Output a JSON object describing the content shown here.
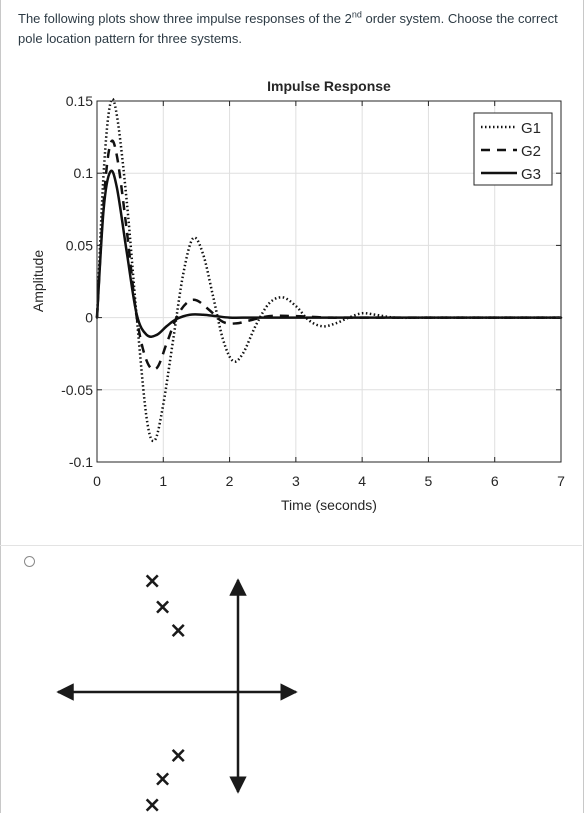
{
  "question": {
    "text_before": "The following plots show three impulse responses of the 2",
    "superscript": "nd",
    "text_after": " order system. Choose the correct pole location pattern for three systems."
  },
  "chart_data": {
    "type": "line",
    "title": "Impulse Response",
    "xlabel": "Time (seconds)",
    "ylabel": "Amplitude",
    "xlim": [
      0,
      7
    ],
    "ylim": [
      -0.1,
      0.15
    ],
    "xticks": [
      0,
      1,
      2,
      3,
      4,
      5,
      6,
      7
    ],
    "xtick_labels": [
      "0",
      "1",
      "2",
      "3",
      "4",
      "5",
      "6",
      "7"
    ],
    "yticks": [
      0.15,
      0.1,
      0.05,
      0,
      -0.05,
      -0.1
    ],
    "ytick_labels": [
      "0.15",
      "0.1",
      "0.05",
      "0",
      "-0.05",
      "-0.1"
    ],
    "grid": true,
    "legend_position": "top-right",
    "series": [
      {
        "name": "G1",
        "style": "dotted",
        "x": [
          0,
          0.1,
          0.2,
          0.3,
          0.45,
          0.6,
          0.75,
          0.87,
          1.0,
          1.15,
          1.3,
          1.45,
          1.6,
          1.75,
          1.9,
          2.05,
          2.2,
          2.4,
          2.6,
          2.8,
          3.0,
          3.2,
          3.4,
          3.6,
          3.8,
          4.0,
          4.2,
          4.5,
          5.0,
          5.5,
          6.0,
          7.0
        ],
        "y": [
          0,
          0.1,
          0.148,
          0.14,
          0.08,
          0.0,
          -0.07,
          -0.085,
          -0.06,
          -0.015,
          0.03,
          0.055,
          0.044,
          0.015,
          -0.015,
          -0.03,
          -0.025,
          -0.005,
          0.01,
          0.014,
          0.008,
          -0.002,
          -0.006,
          -0.004,
          0.0,
          0.003,
          0.002,
          0.0,
          0.0,
          0.0,
          0.0,
          0.0
        ]
      },
      {
        "name": "G2",
        "style": "dashed",
        "x": [
          0,
          0.1,
          0.2,
          0.3,
          0.45,
          0.6,
          0.75,
          0.9,
          1.05,
          1.2,
          1.35,
          1.5,
          1.7,
          1.9,
          2.1,
          2.3,
          2.6,
          3.0,
          3.5,
          4.0,
          7.0
        ],
        "y": [
          0,
          0.08,
          0.12,
          0.112,
          0.06,
          0.0,
          -0.03,
          -0.035,
          -0.018,
          0.0,
          0.01,
          0.012,
          0.005,
          -0.003,
          -0.004,
          -0.002,
          0.001,
          0.001,
          0.0,
          0.0,
          0.0
        ]
      },
      {
        "name": "G3",
        "style": "solid",
        "x": [
          0,
          0.1,
          0.2,
          0.3,
          0.45,
          0.6,
          0.75,
          0.9,
          1.05,
          1.2,
          1.4,
          1.6,
          1.8,
          2.0,
          2.3,
          2.6,
          3.0,
          7.0
        ],
        "y": [
          0,
          0.075,
          0.101,
          0.09,
          0.045,
          0.002,
          -0.012,
          -0.012,
          -0.006,
          -0.001,
          0.002,
          0.002,
          0.001,
          0.0,
          0.0,
          0.0,
          0.0,
          0.0
        ]
      }
    ]
  },
  "pole_plot": {
    "poles": [
      {
        "re": -3.3,
        "im": 4.3
      },
      {
        "re": -2.9,
        "im": 3.3
      },
      {
        "re": -2.3,
        "im": 2.4
      },
      {
        "re": -2.3,
        "im": -2.4
      },
      {
        "re": -2.9,
        "im": -3.3
      },
      {
        "re": -3.3,
        "im": -4.3
      }
    ],
    "marker": "×"
  }
}
